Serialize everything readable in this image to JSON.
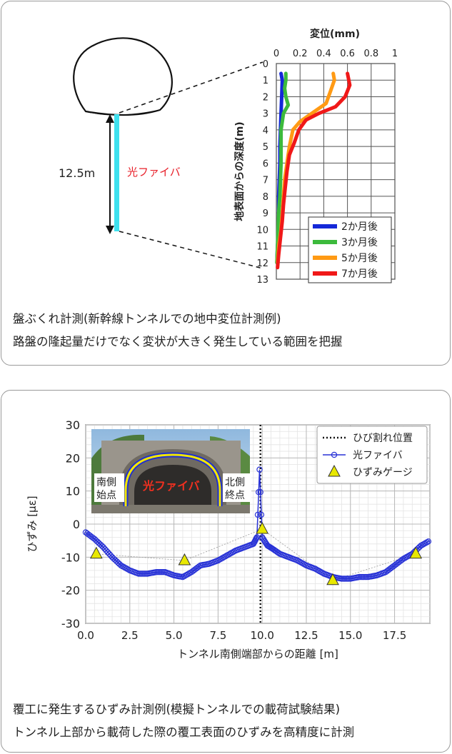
{
  "panel1": {
    "caption_line1": "盤ぶくれ計測(新幹線トンネルでの地中変位計測例)",
    "caption_line2": "路盤の隆起量だけでなく変状が大きく発生している範囲を把握",
    "diagram": {
      "depth_label": "12.5m",
      "fiber_label": "光ファイバ",
      "fiber_color": "#3ee0ee",
      "fiber_label_color": "#e8202a"
    }
  },
  "panel2": {
    "caption_line1": "覆工に発生するひずみ計測例(模擬トンネルでの載荷試験結果)",
    "caption_line2": "トンネル上部から載荷した際の覆工表面のひずみを高精度に計測",
    "photo": {
      "fiber_label": "光ファイバ",
      "left_label_1": "南側",
      "left_label_2": "始点",
      "right_label_1": "北側",
      "right_label_2": "終点"
    }
  },
  "chart_data": [
    {
      "type": "line",
      "title": "変位(mm)",
      "xlabel": "変位(mm)",
      "ylabel": "地表面からの深度(m)",
      "xlim": [
        0,
        1
      ],
      "ylim": [
        0,
        13
      ],
      "y_inverted": true,
      "x_ticks": [
        "0",
        "0.2",
        "0.4",
        "0.6",
        "0.8",
        "1"
      ],
      "y_ticks": [
        "0",
        "1",
        "2",
        "3",
        "4",
        "5",
        "6",
        "7",
        "8",
        "9",
        "10",
        "11",
        "12",
        "13"
      ],
      "grid": true,
      "legend_position": "bottom-right",
      "series": [
        {
          "name": "2か月後",
          "color": "#1428d8",
          "points": [
            [
              0.04,
              0.6
            ],
            [
              0.05,
              1
            ],
            [
              0.045,
              2
            ],
            [
              0.04,
              3
            ],
            [
              0.035,
              4
            ],
            [
              0.03,
              5
            ],
            [
              0.03,
              6
            ],
            [
              0.025,
              7
            ],
            [
              0.02,
              8
            ],
            [
              0.02,
              9
            ],
            [
              0.02,
              10
            ],
            [
              0.01,
              11
            ],
            [
              0.005,
              12
            ]
          ]
        },
        {
          "name": "3か月後",
          "color": "#3cba3c",
          "points": [
            [
              0.08,
              0.6
            ],
            [
              0.08,
              1
            ],
            [
              0.07,
              1.5
            ],
            [
              0.08,
              2
            ],
            [
              0.1,
              2.5
            ],
            [
              0.06,
              3
            ],
            [
              0.04,
              4
            ],
            [
              0.04,
              5
            ],
            [
              0.04,
              6
            ],
            [
              0.035,
              7
            ],
            [
              0.03,
              8
            ],
            [
              0.02,
              9
            ],
            [
              0.015,
              10
            ],
            [
              0.01,
              11
            ],
            [
              0.005,
              12
            ]
          ]
        },
        {
          "name": "5か月後",
          "color": "#ff9a14",
          "points": [
            [
              0.48,
              0.6
            ],
            [
              0.49,
              1
            ],
            [
              0.46,
              1.6
            ],
            [
              0.42,
              2.4
            ],
            [
              0.3,
              3
            ],
            [
              0.2,
              3.5
            ],
            [
              0.14,
              4
            ],
            [
              0.11,
              5
            ],
            [
              0.09,
              6
            ],
            [
              0.07,
              7
            ],
            [
              0.06,
              8
            ],
            [
              0.05,
              9
            ],
            [
              0.04,
              10
            ],
            [
              0.02,
              11
            ],
            [
              0.01,
              12
            ]
          ]
        },
        {
          "name": "7か月後",
          "color": "#f01818",
          "points": [
            [
              0.6,
              0.6
            ],
            [
              0.62,
              1.3
            ],
            [
              0.58,
              2
            ],
            [
              0.5,
              2.6
            ],
            [
              0.36,
              3
            ],
            [
              0.25,
              3.4
            ],
            [
              0.19,
              4
            ],
            [
              0.15,
              4.8
            ],
            [
              0.11,
              5.5
            ],
            [
              0.09,
              6.5
            ],
            [
              0.075,
              7.5
            ],
            [
              0.06,
              8.5
            ],
            [
              0.05,
              9.5
            ],
            [
              0.035,
              10.5
            ],
            [
              0.02,
              11.5
            ],
            [
              0.01,
              12.3
            ]
          ]
        }
      ]
    },
    {
      "type": "line",
      "title": "",
      "xlabel": "トンネル南側端部からの距離 [m]",
      "ylabel": "ひずみ [με]",
      "xlim": [
        0,
        19.5
      ],
      "ylim": [
        -30,
        30
      ],
      "x_ticks": [
        "0.0",
        "2.5",
        "5.0",
        "7.5",
        "10.0",
        "12.5",
        "15.0",
        "17.5"
      ],
      "y_ticks": [
        "30",
        "20",
        "10",
        "0",
        "-10",
        "-20",
        "-30"
      ],
      "grid": true,
      "legend_position": "top-right",
      "crack_position": 9.9,
      "series": [
        {
          "name": "ひび割れ位置",
          "color": "#111111",
          "x": [
            9.9,
            9.9
          ],
          "y": [
            -30,
            30
          ]
        },
        {
          "name": "光ファイバ",
          "color": "#2832d6",
          "x": [
            0.0,
            0.5,
            1.0,
            1.5,
            2.0,
            2.5,
            3.0,
            3.5,
            4.0,
            4.5,
            5.0,
            5.5,
            6.0,
            6.5,
            7.0,
            7.5,
            8.0,
            8.5,
            9.0,
            9.5,
            9.7,
            9.85,
            10.0,
            10.3,
            10.6,
            11.0,
            11.5,
            12.0,
            12.5,
            13.0,
            13.5,
            14.0,
            14.5,
            15.0,
            15.5,
            16.0,
            16.5,
            17.0,
            17.5,
            18.0,
            18.5,
            19.0,
            19.5
          ],
          "y": [
            -2.5,
            -4.5,
            -7,
            -10,
            -12.5,
            -14,
            -15,
            -15,
            -14.5,
            -14.5,
            -15.5,
            -16,
            -14.5,
            -12.5,
            -12,
            -11,
            -9.5,
            -8,
            -7,
            -6,
            -4,
            16.5,
            -4,
            -6.5,
            -7.5,
            -9,
            -10,
            -11,
            -12.5,
            -13.5,
            -15,
            -16,
            -16.5,
            -16.5,
            -16,
            -16,
            -15.5,
            -14.5,
            -12.5,
            -10.5,
            -9,
            -6.5,
            -5
          ]
        },
        {
          "name": "ひずみゲージ",
          "color": "#e8e800",
          "x": [
            0.6,
            5.6,
            10.0,
            14.0,
            18.7
          ],
          "y": [
            -9,
            -11,
            -1.5,
            -17,
            -9
          ]
        }
      ]
    }
  ]
}
